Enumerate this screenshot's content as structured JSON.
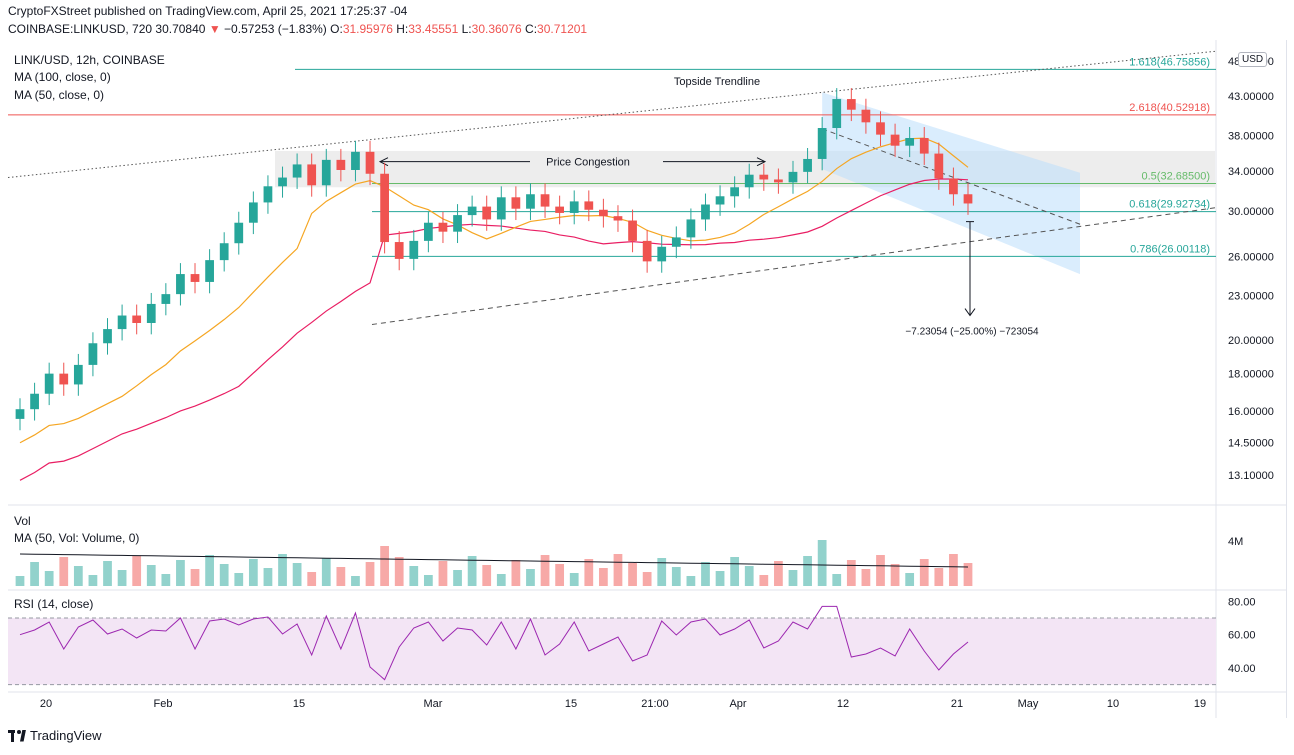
{
  "header": {
    "publisher_line": "CryptoFXStreet published on TradingView.com, April 25, 2021 17:25:37 -04",
    "symbol": "COINBASE:LINKUSD, 720",
    "last": "30.70840",
    "change_arrow": "▼",
    "change": "−0.57253 (−1.83%)",
    "o_label": "O:",
    "o": "31.95976",
    "h_label": "H:",
    "h": "33.45551",
    "l_label": "L:",
    "l": "30.36076",
    "c_label": "C:",
    "c": "30.71201"
  },
  "legends": {
    "title": "LINK/USD, 12h, COINBASE",
    "ma100": "MA (100, close, 0)",
    "ma50": "MA (50, close, 0)",
    "vol": "Vol",
    "vol_ma": "MA (50, Vol: Volume, 0)",
    "rsi": "RSI (14, close)"
  },
  "currency_badge": "USD",
  "branding": "TradingView",
  "colors": {
    "up": "#26a69a",
    "down": "#ef5350",
    "ma50": "#f5a623",
    "ma100": "#e91e63",
    "rsi": "#9c27b0",
    "rsi_band": "#f3e5f5",
    "fib_green": "#66bb6a",
    "fib_teal": "#26a69a",
    "fib_red": "#ef5350",
    "channel": "#bbdefb"
  },
  "chart_data": {
    "type": "candlestick",
    "price_axis_labels": [
      "48.00000",
      "43.00000",
      "38.00000",
      "34.00000",
      "30.00000",
      "26.00000",
      "23.00000",
      "20.00000",
      "18.00000",
      "16.00000",
      "14.50000",
      "13.10000"
    ],
    "volume_axis_labels": [
      "4M"
    ],
    "rsi_axis_labels": [
      "80.00",
      "60.00",
      "40.00"
    ],
    "time_axis_labels": [
      "20",
      "Feb",
      "15",
      "Mar",
      "15",
      "21:00",
      "Apr",
      "12",
      "21",
      "May",
      "10",
      "19"
    ],
    "fib_levels": [
      {
        "label": "1.618(46.75856)",
        "value": 46.75856
      },
      {
        "label": "2.618(40.52918)",
        "value": 40.52918
      },
      {
        "label": "0.5(32.68500)",
        "value": 32.685
      },
      {
        "label": "0.618(29.92734)",
        "value": 29.92734
      },
      {
        "label": "0.786(26.00118)",
        "value": 26.00118
      }
    ],
    "annotations": {
      "topside_trendline": "Topside Trendline",
      "price_congestion": "Price Congestion",
      "measured_move": "−7.23054 (−25.00%) −723054"
    },
    "close_approx": [
      16.1,
      16.9,
      18.0,
      17.4,
      18.5,
      19.8,
      20.7,
      21.6,
      21.1,
      22.4,
      23.1,
      24.6,
      24.0,
      25.7,
      27.1,
      28.9,
      30.8,
      32.4,
      33.3,
      34.7,
      32.5,
      35.2,
      34.1,
      36.1,
      33.7,
      27.2,
      25.8,
      27.3,
      28.9,
      28.1,
      29.6,
      30.4,
      29.2,
      31.3,
      30.2,
      31.6,
      30.4,
      29.8,
      30.9,
      30.1,
      29.5,
      29.1,
      27.3,
      25.6,
      26.8,
      27.6,
      29.2,
      30.6,
      31.4,
      32.3,
      33.6,
      33.1,
      32.8,
      33.9,
      35.3,
      38.9,
      42.6,
      41.2,
      39.6,
      38.1,
      36.8,
      37.7,
      35.9,
      33.2,
      31.6,
      30.7
    ]
  }
}
